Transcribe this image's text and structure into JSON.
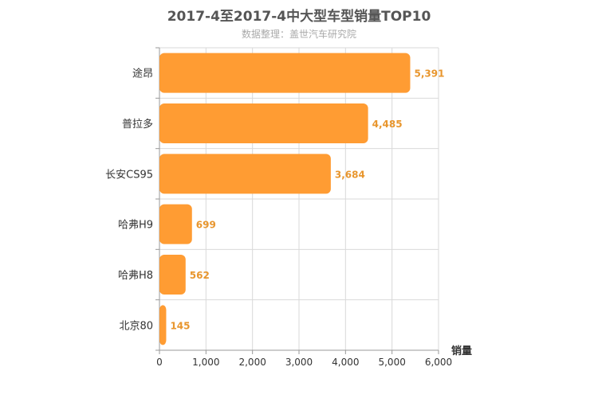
{
  "title": "2017-4至2017-4中大型车型销量TOP10",
  "subtitle": "数据整理：盖世汽车研究院",
  "chart_data": {
    "type": "bar",
    "orientation": "horizontal",
    "categories": [
      "途昂",
      "普拉多",
      "长安CS95",
      "哈弗H9",
      "哈弗H8",
      "北京80"
    ],
    "values": [
      5391,
      4485,
      3684,
      699,
      562,
      145
    ],
    "value_labels": [
      "5,391",
      "4,485",
      "3,684",
      "699",
      "562",
      "145"
    ],
    "xlabel": "销量",
    "xlim": [
      0,
      6000
    ],
    "xticks": [
      0,
      1000,
      2000,
      3000,
      4000,
      5000,
      6000
    ],
    "xtick_labels": [
      "0",
      "1,000",
      "2,000",
      "3,000",
      "4,000",
      "5,000",
      "6,000"
    ],
    "grid": "vertical",
    "colors": {
      "bar": "#FF9C33",
      "label": "#E8962E",
      "grid": "#D9D9D9",
      "axis": "#999999"
    }
  }
}
